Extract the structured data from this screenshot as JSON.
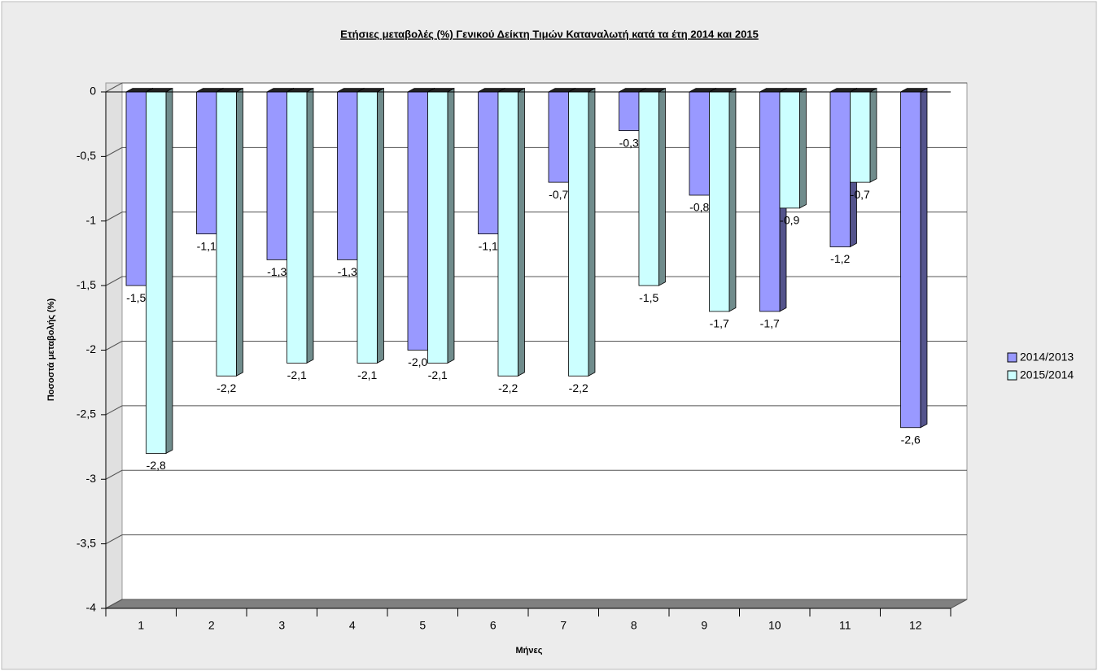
{
  "chart_data": {
    "type": "bar3d",
    "title": "Ετήσιες μεταβολές (%) Γενικού Δείκτη Τιμών Καταναλωτή κατά τα έτη 2014 και 2015",
    "x_label": "Μήνες",
    "y_label": "Ποσοστά μεταβολής (%)",
    "categories": [
      "1",
      "2",
      "3",
      "4",
      "5",
      "6",
      "7",
      "8",
      "9",
      "10",
      "11",
      "12"
    ],
    "series": [
      {
        "name": "2014/2013",
        "color": "#9999ff",
        "values": [
          -1.5,
          -1.1,
          -1.3,
          -1.3,
          -2.0,
          -1.1,
          -0.7,
          -0.3,
          -0.8,
          -1.7,
          -1.2,
          -2.6
        ],
        "value_labels": [
          "-1,5",
          "-1,1",
          "-1,3",
          "-1,3",
          "-2,0",
          "-1,1",
          "-0,7",
          "-0,3",
          "-0,8",
          "-1,7",
          "-1,2",
          "-2,6"
        ]
      },
      {
        "name": "2015/2014",
        "color": "#ccffff",
        "values": [
          -2.8,
          -2.2,
          -2.1,
          -2.1,
          -2.1,
          -2.2,
          -2.2,
          -1.5,
          -1.7,
          -0.9,
          -0.7,
          null
        ],
        "value_labels": [
          "-2,8",
          "-2,2",
          "-2,1",
          "-2,1",
          "-2,1",
          "-2,2",
          "-2,2",
          "-1,5",
          "-1,7",
          "-0,9",
          "-0,7",
          null
        ]
      }
    ],
    "ylim": [
      -4,
      0
    ],
    "yticks": [
      0,
      {
        "value": -0.5,
        "label": "-0,5"
      },
      -1,
      {
        "value": -1.5,
        "label": "-1,5"
      },
      -2,
      {
        "value": -2.5,
        "label": "-2,5"
      },
      -3,
      {
        "value": -3.5,
        "label": "-3,5"
      },
      -4
    ],
    "grid": true,
    "legend": "right"
  }
}
